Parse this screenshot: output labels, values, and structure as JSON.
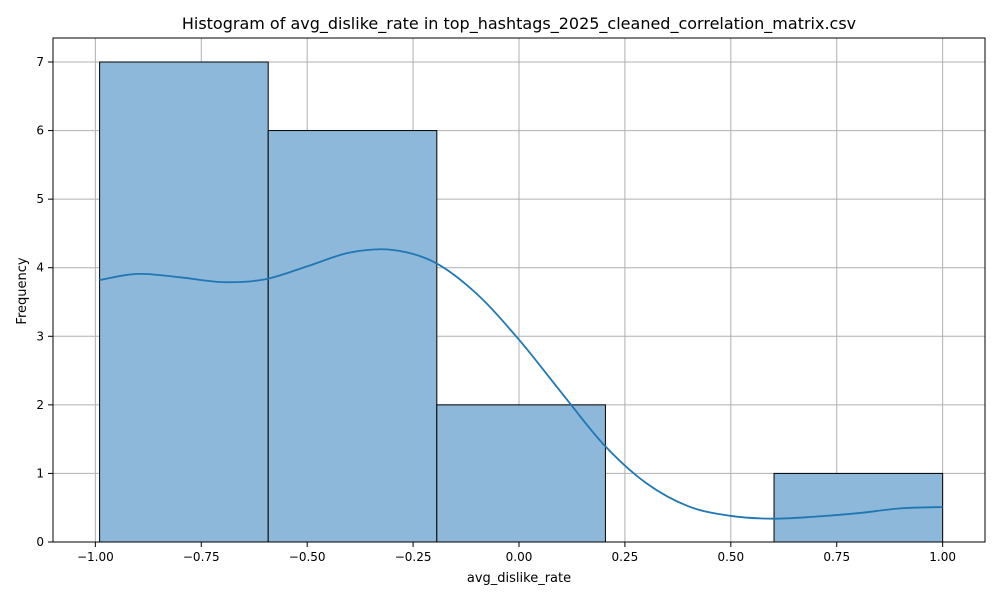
{
  "chart_data": {
    "type": "bar",
    "subtype": "histogram",
    "title": "Histogram of avg_dislike_rate in top_hashtags_2025_cleaned_correlation_matrix.csv",
    "xlabel": "avg_dislike_rate",
    "ylabel": "Frequency",
    "xlim": [
      -1.1,
      1.1
    ],
    "ylim": [
      0,
      7.35
    ],
    "grid": true,
    "bins": [
      {
        "start": -0.99,
        "end": -0.592,
        "count": 7
      },
      {
        "start": -0.592,
        "end": -0.194,
        "count": 6
      },
      {
        "start": -0.194,
        "end": 0.204,
        "count": 2
      },
      {
        "start": 0.204,
        "end": 0.602,
        "count": 0
      },
      {
        "start": 0.602,
        "end": 1.0,
        "count": 1
      }
    ],
    "kde": {
      "x": [
        -0.99,
        -0.9,
        -0.8,
        -0.7,
        -0.6,
        -0.5,
        -0.4,
        -0.3,
        -0.2,
        -0.1,
        0.0,
        0.1,
        0.2,
        0.3,
        0.4,
        0.5,
        0.6,
        0.7,
        0.8,
        0.9,
        1.0
      ],
      "y": [
        3.82,
        3.91,
        3.86,
        3.79,
        3.83,
        4.02,
        4.22,
        4.26,
        4.08,
        3.62,
        2.95,
        2.18,
        1.42,
        0.86,
        0.52,
        0.38,
        0.34,
        0.37,
        0.42,
        0.49,
        0.51
      ]
    },
    "x_ticks": [
      {
        "value": -1.0,
        "label": "−1.00"
      },
      {
        "value": -0.75,
        "label": "−0.75"
      },
      {
        "value": -0.5,
        "label": "−0.50"
      },
      {
        "value": -0.25,
        "label": "−0.25"
      },
      {
        "value": 0.0,
        "label": "0.00"
      },
      {
        "value": 0.25,
        "label": "0.25"
      },
      {
        "value": 0.5,
        "label": "0.50"
      },
      {
        "value": 0.75,
        "label": "0.75"
      },
      {
        "value": 1.0,
        "label": "1.00"
      }
    ],
    "y_ticks": [
      {
        "value": 0,
        "label": "0"
      },
      {
        "value": 1,
        "label": "1"
      },
      {
        "value": 2,
        "label": "2"
      },
      {
        "value": 3,
        "label": "3"
      },
      {
        "value": 4,
        "label": "4"
      },
      {
        "value": 5,
        "label": "5"
      },
      {
        "value": 6,
        "label": "6"
      },
      {
        "value": 7,
        "label": "7"
      }
    ],
    "colors": {
      "bar_fill": "#8db8d9",
      "bar_edge": "#000000",
      "kde_line": "#1f77b4",
      "grid": "#b0b0b0"
    }
  }
}
